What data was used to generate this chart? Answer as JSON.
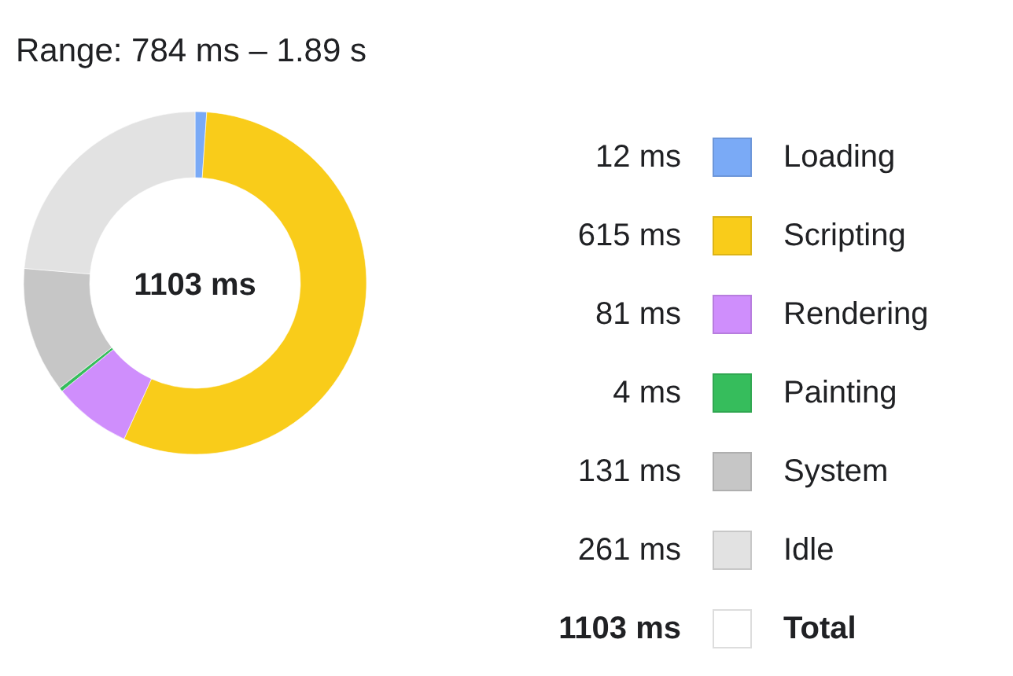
{
  "chart_data": {
    "type": "donut",
    "title": "Range: 784 ms – 1.89 s",
    "categories": [
      "Loading",
      "Scripting",
      "Rendering",
      "Painting",
      "System",
      "Idle"
    ],
    "values": [
      12,
      615,
      81,
      4,
      131,
      261
    ],
    "value_labels": [
      "12 ms",
      "615 ms",
      "81 ms",
      "4 ms",
      "131 ms",
      "261 ms"
    ],
    "colors": [
      "#7aaaf6",
      "#f9cc1a",
      "#cf8efc",
      "#36bd5c",
      "#c6c6c6",
      "#e2e2e2"
    ],
    "totals": [
      "1103 ms"
    ],
    "annotations": [
      "Total"
    ],
    "legend": "right"
  }
}
